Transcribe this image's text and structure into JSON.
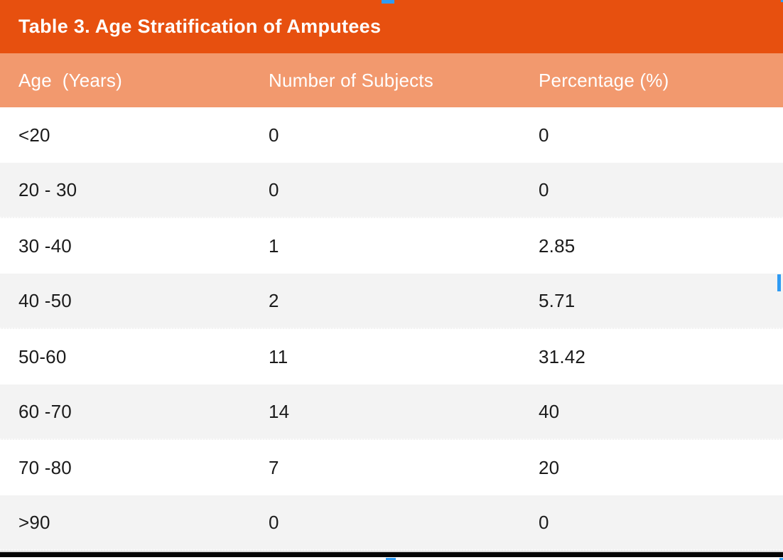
{
  "table": {
    "title": "Table 3. Age Stratification of Amputees",
    "columns": [
      "Age  (Years)",
      "Number of Subjects",
      "Percentage (%)"
    ],
    "rows": [
      {
        "age": "<20",
        "subjects": "0",
        "percentage": "0"
      },
      {
        "age": "20 - 30",
        "subjects": "0",
        "percentage": "0"
      },
      {
        "age": "30 -40",
        "subjects": "1",
        "percentage": "2.85"
      },
      {
        "age": "40 -50",
        "subjects": "2",
        "percentage": "5.71"
      },
      {
        "age": "50-60",
        "subjects": "11",
        "percentage": "31.42"
      },
      {
        "age": "60 -70",
        "subjects": "14",
        "percentage": "40"
      },
      {
        "age": "70 -80",
        "subjects": "7",
        "percentage": "20"
      },
      {
        "age": ">90",
        "subjects": "0",
        "percentage": "0"
      }
    ]
  },
  "chart_data": {
    "type": "table",
    "title": "Table 3. Age Stratification of Amputees",
    "columns": [
      "Age (Years)",
      "Number of Subjects",
      "Percentage (%)"
    ],
    "rows": [
      [
        "<20",
        0,
        0
      ],
      [
        "20 - 30",
        0,
        0
      ],
      [
        "30 -40",
        1,
        2.85
      ],
      [
        "40 -50",
        2,
        5.71
      ],
      [
        "50-60",
        11,
        31.42
      ],
      [
        "60 -70",
        14,
        40
      ],
      [
        "70 -80",
        7,
        20
      ],
      [
        ">90",
        0,
        0
      ]
    ]
  },
  "colors": {
    "title_bar_bg": "#E7500F",
    "header_row_bg": "#F2996E",
    "row_bg": "#FFFFFF",
    "row_alt_bg": "#F3F3F3",
    "title_text": "#FFFFFF",
    "cell_text": "#1B1B1B",
    "bottom_bar": "#030303",
    "crop_handle_blue": "#2F9BF3"
  },
  "screenshot_ui": {
    "crop_handles": [
      "top-center",
      "top-right",
      "right-middle",
      "bottom-center",
      "bottom-right"
    ]
  }
}
